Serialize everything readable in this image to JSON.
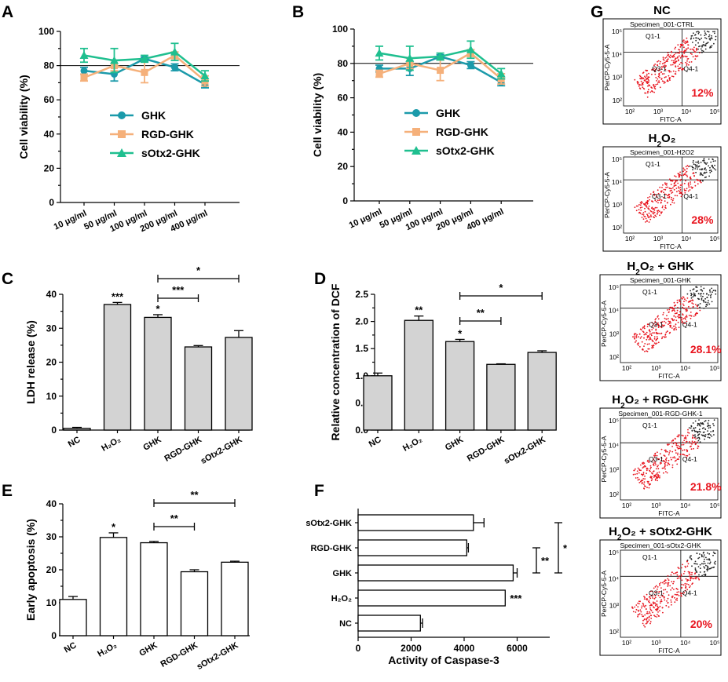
{
  "panel_labels": [
    "A",
    "B",
    "C",
    "D",
    "E",
    "F",
    "G"
  ],
  "chart_data": [
    {
      "panel": "A",
      "type": "line",
      "ylabel": "Cell viability (%)",
      "ylim": [
        0,
        100
      ],
      "yticks": [
        0,
        20,
        40,
        60,
        80,
        100
      ],
      "categories": [
        "10 μg/ml",
        "50 μg/ml",
        "100 μg/ml",
        "200 μg/ml",
        "400 μg/ml"
      ],
      "reference_line": 80,
      "series": [
        {
          "name": "GHK",
          "color": "#1b9aaa",
          "marker": "circle",
          "values": [
            77,
            75,
            84,
            79,
            69
          ],
          "errors": [
            2,
            4,
            1,
            2,
            2
          ]
        },
        {
          "name": "RGD-GHK",
          "color": "#f5b07a",
          "marker": "square",
          "values": [
            73,
            80,
            76,
            86,
            71
          ],
          "errors": [
            2,
            3,
            6,
            2,
            3
          ]
        },
        {
          "name": "sOtx2-GHK",
          "color": "#1fbf8f",
          "marker": "triangle",
          "values": [
            86,
            83,
            84,
            88,
            74
          ],
          "errors": [
            4,
            7,
            2,
            5,
            3
          ]
        }
      ]
    },
    {
      "panel": "B",
      "type": "line",
      "ylabel": "Cell viability (%)",
      "ylim": [
        0,
        100
      ],
      "yticks": [
        0,
        20,
        40,
        60,
        80,
        100
      ],
      "categories": [
        "10 μg/ml",
        "50 μg/ml",
        "100 μg/ml",
        "200 μg/ml",
        "400 μg/ml"
      ],
      "reference_line": 80,
      "series": [
        {
          "name": "GHK",
          "color": "#1b9aaa",
          "marker": "circle",
          "values": [
            77,
            77,
            84,
            79,
            69
          ],
          "errors": [
            2,
            4,
            1,
            2,
            2
          ]
        },
        {
          "name": "RGD-GHK",
          "color": "#f5b07a",
          "marker": "square",
          "values": [
            74,
            80,
            76,
            86,
            71
          ],
          "errors": [
            2,
            3,
            6,
            2,
            3
          ]
        },
        {
          "name": "sOtx2-GHK",
          "color": "#1fbf8f",
          "marker": "triangle",
          "values": [
            86,
            83,
            84,
            88,
            74
          ],
          "errors": [
            4,
            7,
            2,
            5,
            3
          ]
        }
      ]
    },
    {
      "panel": "C",
      "type": "bar",
      "ylabel": "LDH release (%)",
      "ylim": [
        0,
        40
      ],
      "yticks": [
        0,
        10,
        20,
        30,
        40
      ],
      "categories": [
        "NC",
        "H₂O₂",
        "GHK",
        "RGD-GHK",
        "sOtx2-GHK"
      ],
      "values": [
        0.5,
        37,
        33.2,
        24.5,
        27.3
      ],
      "errors": [
        0.3,
        0.6,
        0.8,
        0.4,
        2.0
      ],
      "bar_color": "#d3d3d3",
      "bar_stars": [
        "",
        "***",
        "*",
        "",
        ""
      ],
      "brackets": [
        {
          "from": 2,
          "to": 4,
          "label": "*"
        },
        {
          "from": 2,
          "to": 3,
          "label": "***"
        }
      ]
    },
    {
      "panel": "D",
      "type": "bar",
      "ylabel": "Relative concentration of DCF",
      "ylim": [
        0,
        2.5
      ],
      "yticks": [
        "0.0",
        "0.5",
        "1.0",
        "1.5",
        "2.0",
        "2.5"
      ],
      "categories": [
        "NC",
        "H₂O₂",
        "GHK",
        "RGD-GHK",
        "sOtx2-GHK"
      ],
      "values": [
        1.0,
        2.02,
        1.63,
        1.21,
        1.43
      ],
      "errors": [
        0.05,
        0.08,
        0.04,
        0.01,
        0.03
      ],
      "bar_color": "#d3d3d3",
      "bar_stars": [
        "",
        "**",
        "*",
        "",
        ""
      ],
      "brackets": [
        {
          "from": 2,
          "to": 4,
          "label": "*"
        },
        {
          "from": 2,
          "to": 3,
          "label": "**"
        }
      ]
    },
    {
      "panel": "E",
      "type": "bar",
      "ylabel": "Early apoptosis (%)",
      "ylim": [
        0,
        40
      ],
      "yticks": [
        0,
        10,
        20,
        30,
        40
      ],
      "categories": [
        "NC",
        "H₂O₂",
        "GHK",
        "RGD-GHK",
        "sOtx2-GHK"
      ],
      "values": [
        11,
        29.8,
        28.2,
        19.4,
        22.3
      ],
      "errors": [
        0.9,
        1.4,
        0.4,
        0.6,
        0.3
      ],
      "bar_color": "#ffffff",
      "bar_stars": [
        "",
        "*",
        "",
        "",
        ""
      ],
      "brackets": [
        {
          "from": 2,
          "to": 4,
          "label": "**"
        },
        {
          "from": 2,
          "to": 3,
          "label": "**"
        }
      ]
    },
    {
      "panel": "F",
      "type": "bar",
      "orientation": "horizontal",
      "xlabel": "Activity of Caspase-3",
      "xlim": [
        0,
        8000
      ],
      "xticks": [
        0,
        2000,
        4000,
        6000
      ],
      "categories": [
        "sOtx2-GHK",
        "RGD-GHK",
        "GHK",
        "H₂O₂",
        "NC"
      ],
      "values": [
        4350,
        4100,
        5850,
        5550,
        2350
      ],
      "errors": [
        400,
        60,
        150,
        0,
        80
      ],
      "bar_color": "#ffffff",
      "bar_stars": [
        "",
        "",
        "",
        "***",
        ""
      ],
      "brackets": [
        {
          "from": 1,
          "to": 2,
          "label": "**"
        },
        {
          "from": 0,
          "to": 2,
          "label": "*"
        }
      ]
    }
  ],
  "flow_panels": [
    {
      "title_pre": "NC",
      "title_sub": "",
      "title_post": "",
      "specimen": "Specimen_001-CTRL",
      "percent": "12%"
    },
    {
      "title_pre": "H",
      "title_sub": "2",
      "title_post": "O₂",
      "specimen": "Specimen_001-H2O2",
      "percent": "28%"
    },
    {
      "title_pre": "H",
      "title_sub": "2",
      "title_post": "O₂ + GHK",
      "specimen": "Specimen_001-GHK",
      "percent": "28.1%"
    },
    {
      "title_pre": "H",
      "title_sub": "2",
      "title_post": "O₂ + RGD-GHK",
      "specimen": "Specimen_001-RGD-GHK-1",
      "percent": "21.8%"
    },
    {
      "title_pre": "H",
      "title_sub": "2",
      "title_post": "O₂ + sOtx2-GHK",
      "specimen": "Specimen_001-sOtx2-GHK",
      "percent": "20%"
    }
  ],
  "flow_axes": {
    "x_label": "FITC-A",
    "y_label": "PerCP-Cy5-5-A",
    "quadrants": [
      "Q1-1",
      "Q3-1",
      "Q4-1"
    ],
    "x_ticks": [
      "10²",
      "10³",
      "10⁴",
      "10⁵"
    ],
    "y_ticks": [
      "10²",
      "10³",
      "10⁴",
      "10⁵"
    ]
  },
  "colors": {
    "gate_events": "#e8141e",
    "other_events": "#222222",
    "percent_text": "#e8141e"
  }
}
